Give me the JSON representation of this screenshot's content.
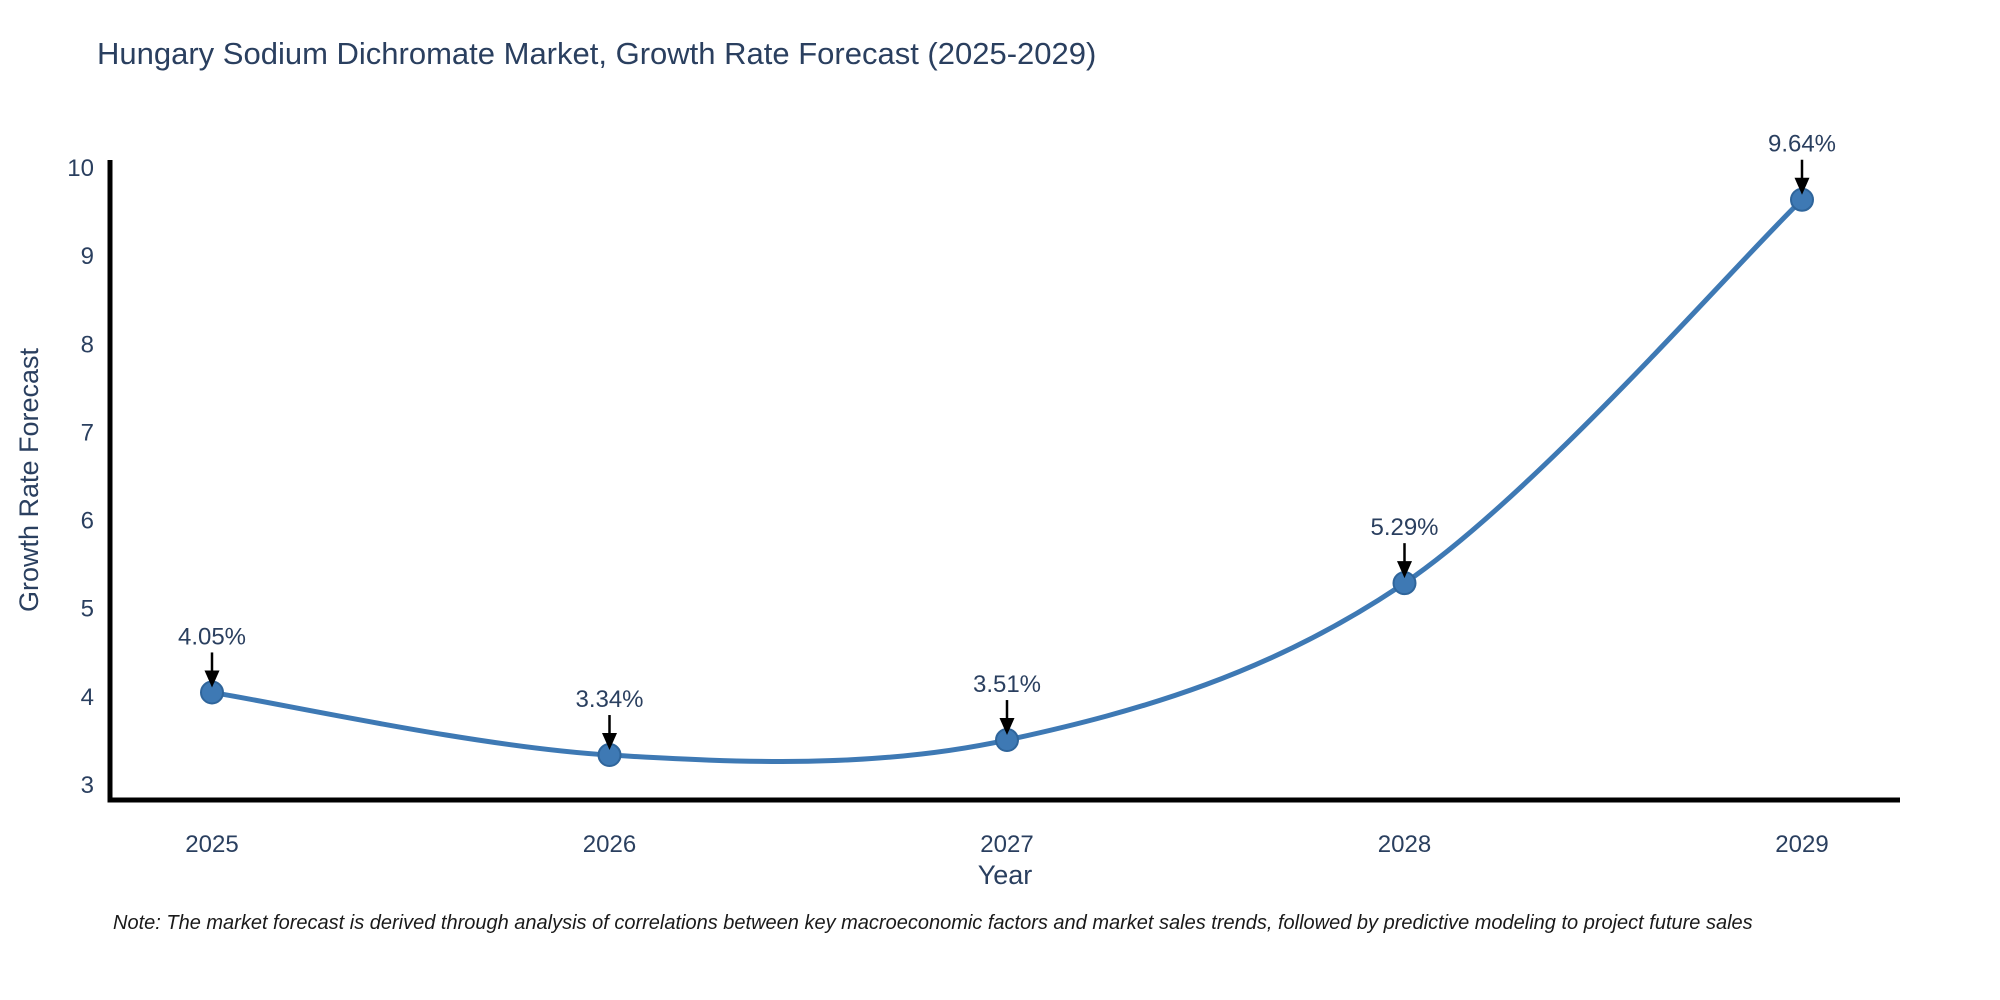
{
  "title": "Hungary Sodium Dichromate Market, Growth Rate Forecast (2025-2029)",
  "note": "Note: The market forecast is derived through analysis of correlations between key macroeconomic factors and market sales trends, followed by predictive modeling to project future sales",
  "colors": {
    "line": "#3e79b4",
    "marker_fill": "#3e79b4",
    "marker_edge": "#2f659b",
    "axis": "#000000",
    "tick_text": "#2a3f5f",
    "annotation_text": "#2a3f5f",
    "arrow": "#000000",
    "background": "#ffffff"
  },
  "chart_data": {
    "type": "line",
    "title": "Hungary Sodium Dichromate Market, Growth Rate Forecast (2025-2029)",
    "x": [
      2025,
      2026,
      2027,
      2028,
      2029
    ],
    "values": [
      4.05,
      3.34,
      3.51,
      5.29,
      9.64
    ],
    "point_labels": [
      "4.05%",
      "3.34%",
      "3.51%",
      "5.29%",
      "9.64%"
    ],
    "xlabel": "Year",
    "ylabel": "Growth Rate Forecast",
    "yticks": [
      3,
      4,
      5,
      6,
      7,
      8,
      9,
      10
    ],
    "xticks": [
      "2025",
      "2026",
      "2027",
      "2028",
      "2029"
    ],
    "ylim": [
      2.83,
      10.26
    ],
    "xlim": [
      2024.74,
      2029.25
    ],
    "grid": false,
    "legend": "none",
    "line_shape": "spline",
    "markers": true,
    "annotations": "value labels with down arrows above each point"
  }
}
